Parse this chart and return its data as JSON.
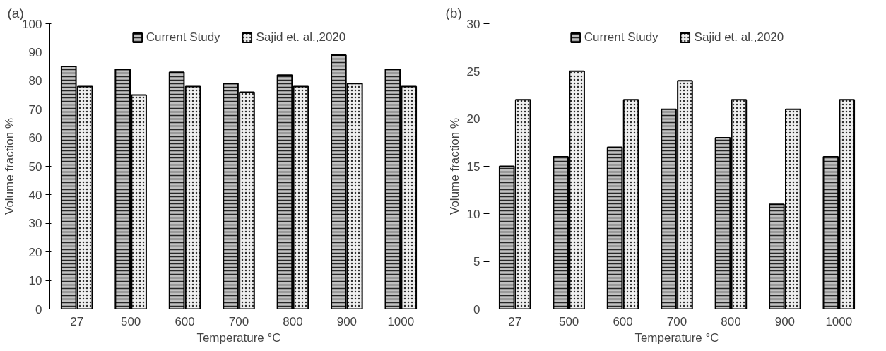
{
  "chart_data": [
    {
      "type": "bar",
      "title": "(a)",
      "xlabel": "Temperature °C",
      "ylabel": "Volume fraction %",
      "categories": [
        "27",
        "500",
        "600",
        "700",
        "800",
        "900",
        "1000"
      ],
      "series": [
        {
          "name": "Current Study",
          "color": "#c0c0c0",
          "values": [
            85,
            84,
            83,
            79,
            82,
            89,
            84
          ]
        },
        {
          "name": "Sajid et. al.,2020",
          "color": "#f0f0f0",
          "values": [
            78,
            75,
            78,
            76,
            78,
            79,
            78
          ]
        }
      ],
      "ylim": [
        0,
        100
      ],
      "yticks": [
        0,
        10,
        20,
        30,
        40,
        50,
        60,
        70,
        80,
        90,
        100
      ],
      "grid": false,
      "legend": "top"
    },
    {
      "type": "bar",
      "title": "(b)",
      "xlabel": "Temperature °C",
      "ylabel": "Volume fraction %",
      "categories": [
        "27",
        "500",
        "600",
        "700",
        "800",
        "900",
        "1000"
      ],
      "series": [
        {
          "name": "Current Study",
          "color": "#c0c0c0",
          "values": [
            15,
            16,
            17,
            21,
            18,
            11,
            16
          ]
        },
        {
          "name": "Sajid et. al.,2020",
          "color": "#f0f0f0",
          "values": [
            22,
            25,
            22,
            24,
            22,
            21,
            22
          ]
        }
      ],
      "ylim": [
        0,
        30
      ],
      "yticks": [
        0,
        5,
        10,
        15,
        20,
        25,
        30
      ],
      "grid": false,
      "legend": "top"
    }
  ]
}
